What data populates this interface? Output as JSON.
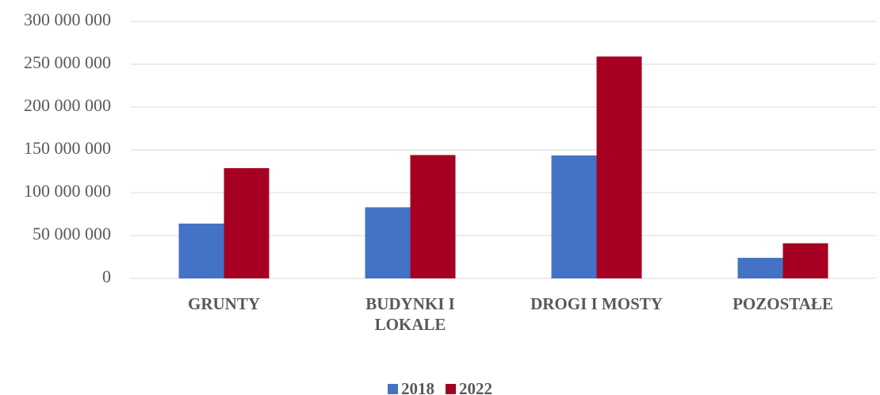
{
  "chart_data": {
    "type": "bar",
    "categories": [
      "GRUNTY",
      "BUDYNKI I LOKALE",
      "DROGI I MOSTY",
      "POZOSTAŁE"
    ],
    "series": [
      {
        "name": "2018",
        "color": "#4472c4",
        "values": [
          64000000,
          83000000,
          143500000,
          24000000
        ]
      },
      {
        "name": "2022",
        "color": "#a50021",
        "values": [
          128700000,
          144000000,
          259000000,
          41000000
        ]
      }
    ],
    "ylim": [
      0,
      300000000
    ],
    "yticks": [
      {
        "value": 0,
        "label": "0"
      },
      {
        "value": 50000000,
        "label": "50 000 000"
      },
      {
        "value": 100000000,
        "label": "100 000 000"
      },
      {
        "value": 150000000,
        "label": "150 000 000"
      },
      {
        "value": 200000000,
        "label": "200 000 000"
      },
      {
        "value": 250000000,
        "label": "250 000 000"
      },
      {
        "value": 300000000,
        "label": "300 000 000"
      }
    ],
    "grid": true,
    "legend": "bottom"
  }
}
